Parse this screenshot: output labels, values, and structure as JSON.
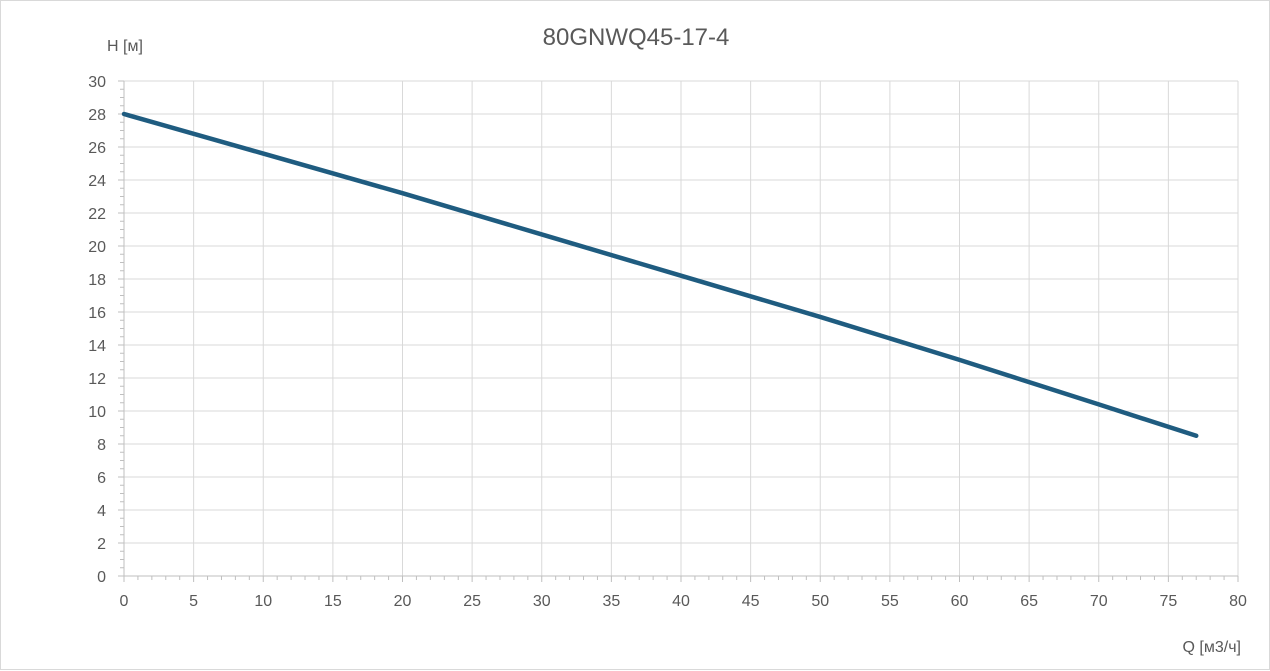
{
  "chart_data": {
    "type": "line",
    "title": "80GNWQ45-17-4",
    "xlabel": "Q [м3/ч]",
    "ylabel": "H [м]",
    "xlim": [
      0,
      80
    ],
    "ylim": [
      0,
      30
    ],
    "x_ticks": [
      0,
      5,
      10,
      15,
      20,
      25,
      30,
      35,
      40,
      45,
      50,
      55,
      60,
      65,
      70,
      75,
      80
    ],
    "y_ticks": [
      0,
      2,
      4,
      6,
      8,
      10,
      12,
      14,
      16,
      18,
      20,
      22,
      24,
      26,
      28,
      30
    ],
    "grid": true,
    "legend": "none",
    "series": [
      {
        "color": "#1f5c80",
        "x": [
          0,
          10,
          20,
          30,
          40,
          50,
          60,
          70,
          77
        ],
        "y": [
          28.0,
          25.6,
          23.2,
          20.7,
          18.2,
          15.7,
          13.1,
          10.4,
          8.5
        ]
      }
    ]
  }
}
